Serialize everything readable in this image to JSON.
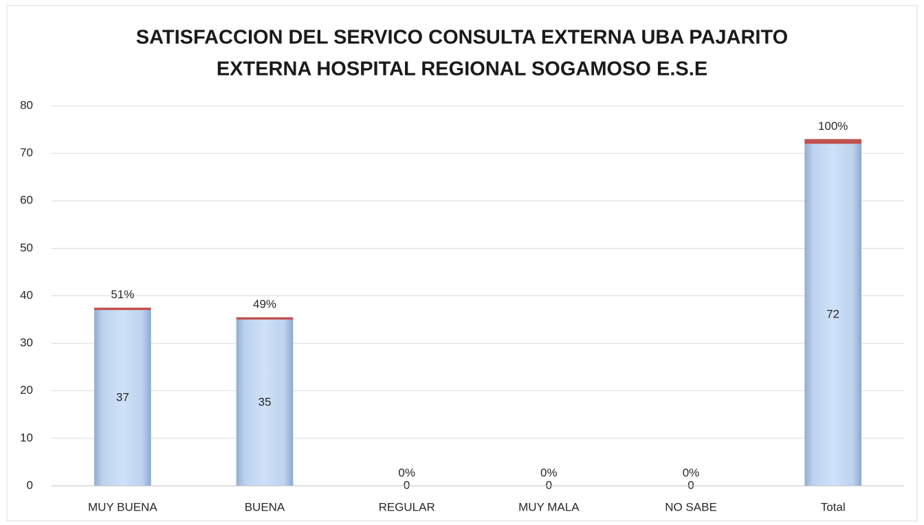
{
  "chart_data": {
    "type": "stacked_bar",
    "title": [
      "SATISFACCION  DEL SERVICO CONSULTA  EXTERNA UBA PAJARITO",
      "EXTERNA HOSPITAL REGIONAL SOGAMOSO E.S.E"
    ],
    "categories": [
      "MUY BUENA",
      "BUENA",
      "REGULAR",
      "MUY MALA",
      "NO SABE",
      "Total"
    ],
    "series": [
      {
        "color": "#c6dbf5",
        "values": [
          37,
          35,
          0,
          0,
          0,
          72
        ]
      },
      {
        "color": "#c0504d",
        "values": [
          0.51,
          0.49,
          0,
          0,
          0,
          1
        ],
        "value_labels": [
          "51%",
          "49%",
          "0%",
          "0%",
          "0%",
          "100%"
        ]
      }
    ],
    "ylim": [
      0,
      80
    ],
    "yticks": [
      0,
      10,
      20,
      30,
      40,
      50,
      60,
      70,
      80
    ],
    "grid": true
  }
}
